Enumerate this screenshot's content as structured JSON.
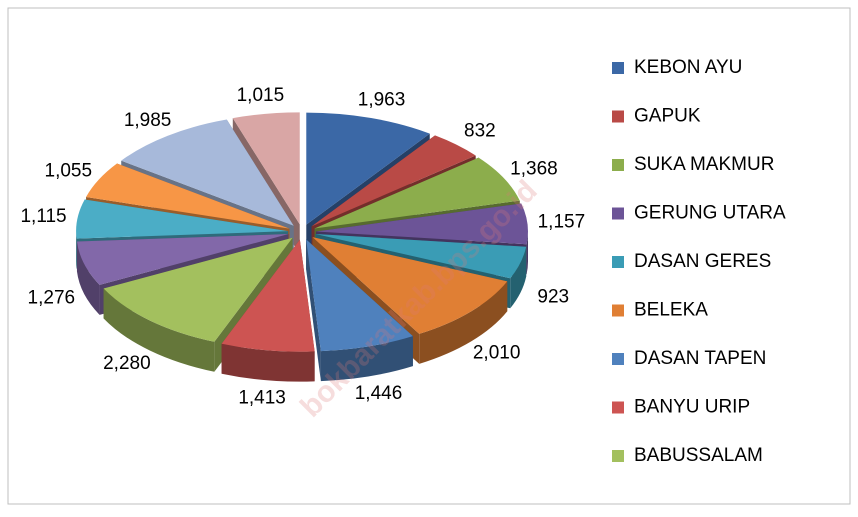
{
  "chart_data": {
    "type": "pie",
    "categories": [
      "KEBON AYU",
      "GAPUK",
      "SUKA MAKMUR",
      "GERUNG UTARA",
      "DASAN GERES",
      "BELEKA",
      "DASAN TAPEN",
      "BANYU URIP",
      "BABUSSALAM",
      null,
      null,
      null,
      null,
      null
    ],
    "values": [
      1963,
      832,
      1368,
      1157,
      923,
      2010,
      1446,
      1413,
      2280,
      1276,
      1115,
      1055,
      1985,
      1015
    ],
    "value_labels": [
      "1,963",
      "832",
      "1,368",
      "1,157",
      "923",
      "2,010",
      "1,446",
      "1,413",
      "2,280",
      "1,276",
      "1,115",
      "1,055",
      "1,985",
      "1,015"
    ],
    "colors": [
      "#3b68a6",
      "#b94a46",
      "#8cad4c",
      "#6c5497",
      "#3a9cb5",
      "#e07f34",
      "#4f81bd",
      "#cd5452",
      "#a3c05e",
      "#8268a9",
      "#4badc6",
      "#f79646",
      "#a7b9da",
      "#d9a6a5"
    ],
    "watermark": "bokbaratkab.bps.go.id"
  }
}
